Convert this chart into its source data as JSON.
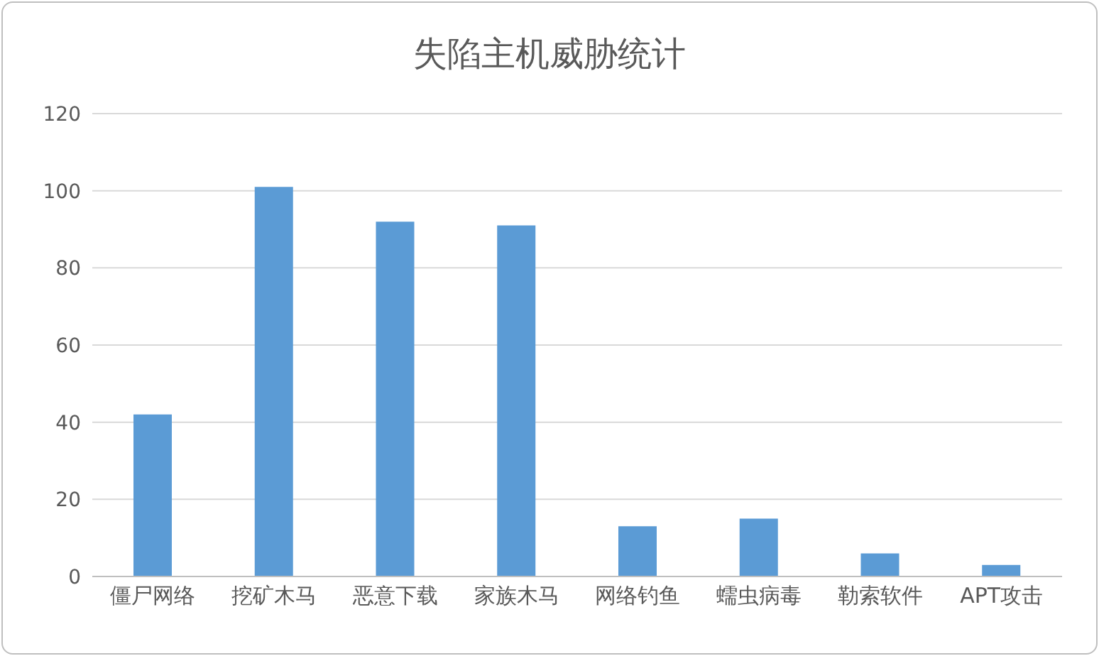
{
  "chart_data": {
    "type": "bar",
    "title": "失陷主机威胁统计",
    "categories": [
      "僵尸网络",
      "挖矿木马",
      "恶意下载",
      "家族木马",
      "网络钓鱼",
      "蠕虫病毒",
      "勒索软件",
      "APT攻击"
    ],
    "values": [
      42,
      101,
      92,
      91,
      13,
      15,
      6,
      3
    ],
    "color": "#5b9bd5",
    "ylim": [
      0,
      120
    ],
    "yticks": [
      0,
      20,
      40,
      60,
      80,
      100,
      120
    ],
    "grid": "y",
    "legend": false
  }
}
